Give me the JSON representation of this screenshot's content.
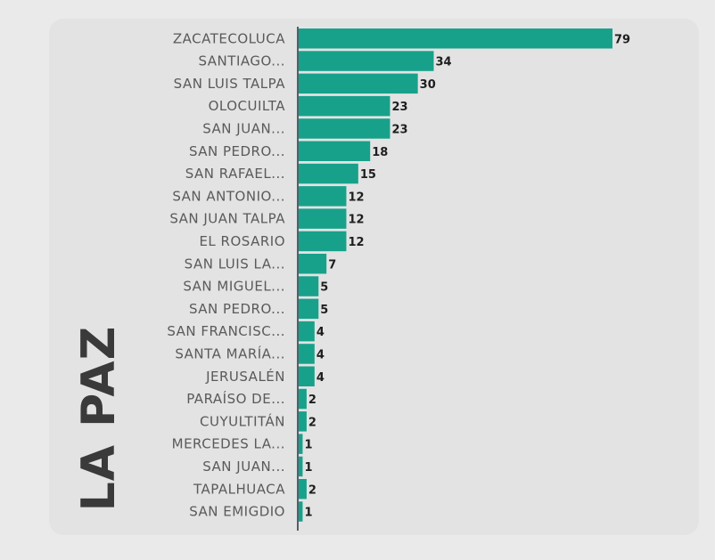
{
  "region_title": "LA PAZ",
  "colors": {
    "bar": "#18a18a",
    "axis": "#54606a"
  },
  "chart_data": {
    "type": "bar",
    "orientation": "horizontal",
    "title": "LA PAZ",
    "categories": [
      "ZACATECOLUCA",
      "SANTIAGO...",
      "SAN LUIS TALPA",
      "OLOCUILTA",
      "SAN JUAN...",
      "SAN PEDRO...",
      "SAN RAFAEL...",
      "SAN ANTONIO...",
      "SAN JUAN TALPA",
      "EL ROSARIO",
      "SAN LUIS LA...",
      "SAN MIGUEL...",
      "SAN PEDRO...",
      "SAN FRANCISC...",
      "SANTA MARÍA...",
      "JERUSALÉN",
      "PARAÍSO DE...",
      "CUYULTITÁN",
      "MERCEDES LA...",
      "SAN JUAN...",
      "TAPALHUACA",
      "SAN EMIGDIO"
    ],
    "values": [
      79,
      34,
      30,
      23,
      23,
      18,
      15,
      12,
      12,
      12,
      7,
      5,
      5,
      4,
      4,
      4,
      2,
      2,
      1,
      1,
      2,
      1
    ],
    "xlim": [
      0,
      79
    ],
    "grid": false,
    "legend": "none"
  }
}
